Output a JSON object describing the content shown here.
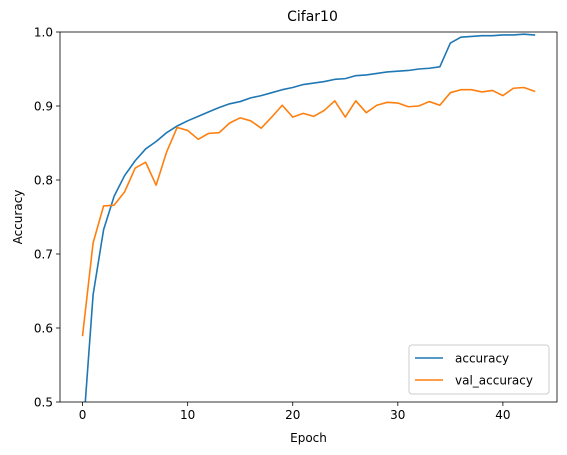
{
  "chart_data": {
    "type": "line",
    "title": "Cifar10",
    "xlabel": "Epoch",
    "ylabel": "Accuracy",
    "xlim": [
      -2.15,
      45.15
    ],
    "ylim": [
      0.5,
      1.0
    ],
    "xticks": [
      0,
      10,
      20,
      30,
      40
    ],
    "yticks": [
      0.5,
      0.6,
      0.7,
      0.8,
      0.9,
      1.0
    ],
    "grid": false,
    "legend_position": "lower right",
    "x": [
      0,
      1,
      2,
      3,
      4,
      5,
      6,
      7,
      8,
      9,
      10,
      11,
      12,
      13,
      14,
      15,
      16,
      17,
      18,
      19,
      20,
      21,
      22,
      23,
      24,
      25,
      26,
      27,
      28,
      29,
      30,
      31,
      32,
      33,
      34,
      35,
      36,
      37,
      38,
      39,
      40,
      41,
      42,
      43
    ],
    "series": [
      {
        "name": "accuracy",
        "color": "#1f77b4",
        "values": [
          0.45,
          0.645,
          0.733,
          0.778,
          0.806,
          0.826,
          0.842,
          0.852,
          0.864,
          0.873,
          0.88,
          0.886,
          0.892,
          0.898,
          0.903,
          0.906,
          0.911,
          0.914,
          0.918,
          0.922,
          0.925,
          0.929,
          0.931,
          0.933,
          0.936,
          0.937,
          0.941,
          0.942,
          0.944,
          0.946,
          0.947,
          0.948,
          0.95,
          0.951,
          0.953,
          0.985,
          0.993,
          0.994,
          0.995,
          0.995,
          0.996,
          0.996,
          0.997,
          0.996
        ]
      },
      {
        "name": "val_accuracy",
        "color": "#ff7f0e",
        "values": [
          0.59,
          0.715,
          0.765,
          0.766,
          0.784,
          0.816,
          0.824,
          0.793,
          0.838,
          0.871,
          0.867,
          0.855,
          0.863,
          0.864,
          0.877,
          0.884,
          0.88,
          0.87,
          0.885,
          0.901,
          0.885,
          0.89,
          0.886,
          0.894,
          0.907,
          0.885,
          0.907,
          0.891,
          0.901,
          0.905,
          0.904,
          0.899,
          0.9,
          0.906,
          0.901,
          0.918,
          0.922,
          0.922,
          0.919,
          0.921,
          0.914,
          0.924,
          0.925,
          0.92
        ]
      }
    ]
  }
}
